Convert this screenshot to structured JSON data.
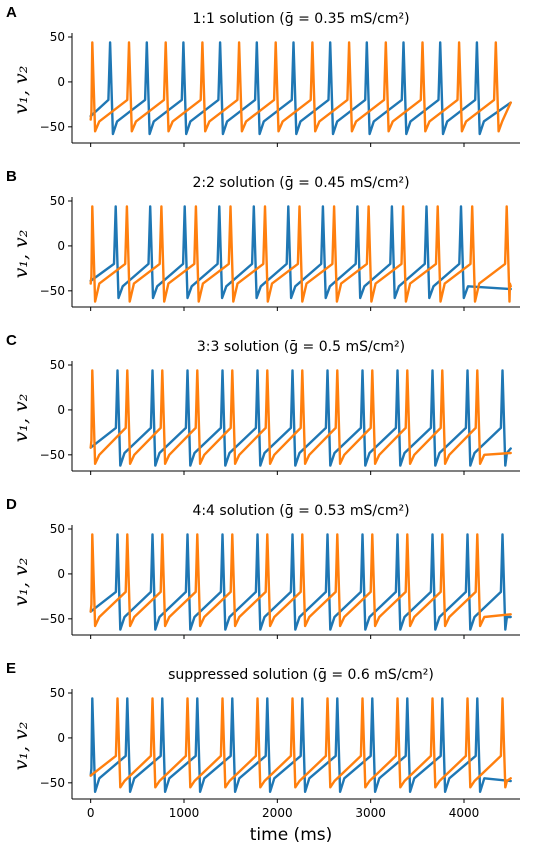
{
  "chart_data": [
    {
      "panel": "A",
      "type": "line",
      "title": "1:1 solution (ḡ = 0.35 mS/cm²)",
      "ylabel": "v₁, v₂",
      "xlabel": "",
      "xlim": [
        -200,
        4600
      ],
      "ylim": [
        -68,
        50
      ],
      "yticks": [
        50,
        0,
        -50
      ],
      "xticks": [
        0,
        1000,
        2000,
        3000,
        4000
      ],
      "show_xtick_labels": false,
      "grid": false,
      "series": [
        {
          "color": "#1f77b4",
          "reset": -58,
          "plateau": -44,
          "end": -23,
          "spikes": [
            190,
            583,
            976,
            1369,
            1762,
            2155,
            2548,
            2941,
            3334,
            3727,
            4120
          ]
        },
        {
          "color": "#ff7f0e",
          "reset": -55,
          "plateau": -44,
          "end": -23,
          "spikes": [
            0,
            393,
            786,
            1179,
            1572,
            1965,
            2358,
            2751,
            3144,
            3537,
            3930,
            4323
          ]
        }
      ]
    },
    {
      "panel": "B",
      "type": "line",
      "title": "2:2 solution (ḡ = 0.45 mS/cm²)",
      "ylabel": "v₁, v₂",
      "xlabel": "",
      "xlim": [
        -200,
        4600
      ],
      "ylim": [
        -68,
        50
      ],
      "yticks": [
        50,
        0,
        -50
      ],
      "xticks": [
        0,
        1000,
        2000,
        3000,
        4000
      ],
      "show_xtick_labels": false,
      "grid": false,
      "series": [
        {
          "color": "#1f77b4",
          "reset": -58,
          "plateau": -45,
          "end": -48,
          "spikes": [
            250,
            620,
            990,
            1360,
            1730,
            2100,
            2470,
            2840,
            3210,
            3580,
            3950
          ]
        },
        {
          "color": "#ff7f0e",
          "reset": -62,
          "plateau": -42,
          "end": -45,
          "spikes": [
            0,
            370,
            740,
            1110,
            1480,
            1850,
            2220,
            2590,
            2960,
            3330,
            3700,
            4070,
            4440
          ]
        }
      ]
    },
    {
      "panel": "C",
      "type": "line",
      "title": "3:3 solution (ḡ = 0.5 mS/cm²)",
      "ylabel": "v₁, v₂",
      "xlabel": "",
      "xlim": [
        -200,
        4600
      ],
      "ylim": [
        -68,
        50
      ],
      "yticks": [
        50,
        0,
        -50
      ],
      "xticks": [
        0,
        1000,
        2000,
        3000,
        4000
      ],
      "show_xtick_labels": false,
      "grid": false,
      "series": [
        {
          "color": "#1f77b4",
          "reset": -62,
          "plateau": -48,
          "end": -43,
          "spikes": [
            270,
            645,
            1020,
            1395,
            1770,
            2145,
            2520,
            2895,
            3270,
            3645,
            4020,
            4395
          ]
        },
        {
          "color": "#ff7f0e",
          "reset": -60,
          "plateau": -50,
          "end": -48,
          "spikes": [
            0,
            375,
            750,
            1125,
            1500,
            1875,
            2250,
            2625,
            3000,
            3375,
            3750,
            4125
          ]
        }
      ]
    },
    {
      "panel": "D",
      "type": "line",
      "title": "4:4 solution (ḡ = 0.53 mS/cm²)",
      "ylabel": "v₁, v₂",
      "xlabel": "",
      "xlim": [
        -200,
        4600
      ],
      "ylim": [
        -68,
        50
      ],
      "yticks": [
        50,
        0,
        -50
      ],
      "xticks": [
        0,
        1000,
        2000,
        3000,
        4000
      ],
      "show_xtick_labels": false,
      "grid": false,
      "series": [
        {
          "color": "#1f77b4",
          "reset": -62,
          "plateau": -48,
          "end": -48,
          "spikes": [
            270,
            645,
            1020,
            1395,
            1770,
            2145,
            2520,
            2895,
            3270,
            3645,
            4020,
            4395
          ]
        },
        {
          "color": "#ff7f0e",
          "reset": -58,
          "plateau": -48,
          "end": -45,
          "spikes": [
            0,
            375,
            750,
            1125,
            1500,
            1875,
            2250,
            2625,
            3000,
            3375,
            3750,
            4125
          ]
        }
      ]
    },
    {
      "panel": "E",
      "type": "line",
      "title": "suppressed solution (ḡ = 0.6 mS/cm²)",
      "ylabel": "v₁, v₂",
      "xlabel": "time (ms)",
      "xlim": [
        -200,
        4600
      ],
      "ylim": [
        -68,
        50
      ],
      "yticks": [
        50,
        0,
        -50
      ],
      "xticks": [
        0,
        1000,
        2000,
        3000,
        4000
      ],
      "show_xtick_labels": true,
      "grid": false,
      "series": [
        {
          "color": "#1f77b4",
          "reset": -60,
          "plateau": -45,
          "end": -48,
          "spikes": [
            0,
            375,
            750,
            1125,
            1500,
            1875,
            2250,
            2625,
            3000,
            3375,
            3750,
            4125
          ]
        },
        {
          "color": "#ff7f0e",
          "reset": -55,
          "plateau": -48,
          "end": -45,
          "spikes": [
            270,
            645,
            1020,
            1395,
            1770,
            2145,
            2520,
            2895,
            3270,
            3645,
            4020,
            4395
          ]
        }
      ]
    }
  ]
}
